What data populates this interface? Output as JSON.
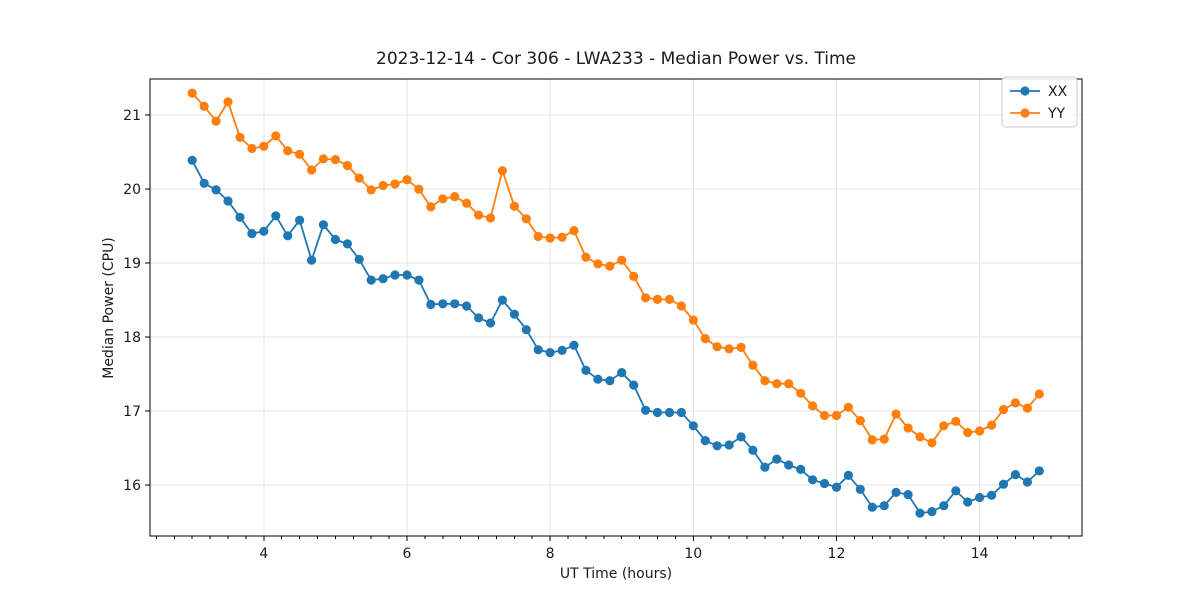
{
  "chart_data": {
    "type": "line",
    "title": "2023-12-14 - Cor 306 - LWA233 - Median Power vs. Time",
    "xlabel": "UT Time (hours)",
    "ylabel": "Median Power (CPU)",
    "xlim": [
      2.41,
      15.43
    ],
    "ylim": [
      15.31,
      21.49
    ],
    "x_major_ticks": [
      4,
      6,
      8,
      10,
      12,
      14
    ],
    "x_minor_tick_step": 0.25,
    "y_major_ticks": [
      16,
      17,
      18,
      19,
      20,
      21
    ],
    "grid": true,
    "legend_position": "upper right",
    "background": "#ffffff",
    "grid_color": "#e5e5e5",
    "x": [
      3.0,
      3.167,
      3.333,
      3.5,
      3.667,
      3.833,
      4.0,
      4.167,
      4.333,
      4.5,
      4.667,
      4.833,
      5.0,
      5.167,
      5.333,
      5.5,
      5.667,
      5.833,
      6.0,
      6.167,
      6.333,
      6.5,
      6.667,
      6.833,
      7.0,
      7.167,
      7.333,
      7.5,
      7.667,
      7.833,
      8.0,
      8.167,
      8.333,
      8.5,
      8.667,
      8.833,
      9.0,
      9.167,
      9.333,
      9.5,
      9.667,
      9.833,
      10.0,
      10.167,
      10.333,
      10.5,
      10.667,
      10.833,
      11.0,
      11.167,
      11.333,
      11.5,
      11.667,
      11.833,
      12.0,
      12.167,
      12.333,
      12.5,
      12.667,
      12.833,
      13.0,
      13.167,
      13.333,
      13.5,
      13.667,
      13.833,
      14.0,
      14.167,
      14.333,
      14.5,
      14.667,
      14.833
    ],
    "series": [
      {
        "name": "XX",
        "color": "#1f77b4",
        "values": [
          20.39,
          20.08,
          19.99,
          19.84,
          19.62,
          19.4,
          19.43,
          19.64,
          19.37,
          19.58,
          19.04,
          19.52,
          19.32,
          19.26,
          19.05,
          18.77,
          18.79,
          18.84,
          18.84,
          18.77,
          18.44,
          18.45,
          18.45,
          18.42,
          18.26,
          18.19,
          18.5,
          18.31,
          18.1,
          17.83,
          17.79,
          17.82,
          17.89,
          17.55,
          17.43,
          17.41,
          17.52,
          17.35,
          17.01,
          16.98,
          16.98,
          16.98,
          16.8,
          16.6,
          16.53,
          16.54,
          16.65,
          16.47,
          16.24,
          16.35,
          16.27,
          16.21,
          16.07,
          16.02,
          15.97,
          16.13,
          15.94,
          15.7,
          15.72,
          15.9,
          15.87,
          15.62,
          15.64,
          15.72,
          15.92,
          15.77,
          15.83,
          15.86,
          16.01,
          16.14,
          16.04,
          16.19
        ]
      },
      {
        "name": "YY",
        "color": "#ff7f0e",
        "values": [
          21.3,
          21.12,
          20.92,
          21.18,
          20.7,
          20.55,
          20.58,
          20.72,
          20.52,
          20.47,
          20.26,
          20.41,
          20.4,
          20.32,
          20.15,
          19.99,
          20.05,
          20.07,
          20.13,
          20.0,
          19.76,
          19.87,
          19.9,
          19.81,
          19.65,
          19.61,
          20.25,
          19.77,
          19.6,
          19.36,
          19.34,
          19.35,
          19.44,
          19.08,
          18.99,
          18.96,
          19.04,
          18.82,
          18.53,
          18.51,
          18.51,
          18.42,
          18.23,
          17.98,
          17.87,
          17.84,
          17.86,
          17.62,
          17.41,
          17.37,
          17.37,
          17.24,
          17.07,
          16.94,
          16.94,
          17.05,
          16.87,
          16.61,
          16.62,
          16.96,
          16.77,
          16.65,
          16.57,
          16.8,
          16.86,
          16.71,
          16.73,
          16.81,
          17.02,
          17.11,
          17.04,
          17.23
        ]
      }
    ]
  }
}
